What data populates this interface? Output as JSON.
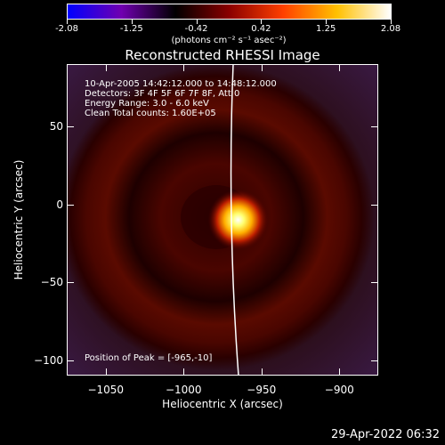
{
  "colorbar": {
    "tick_labels": [
      "-2.08",
      "-1.25",
      "-0.42",
      "0.42",
      "1.25",
      "2.08"
    ],
    "units": "(photons cm⁻² s⁻¹ asec⁻²)",
    "colors": [
      "#0000ff",
      "#7000b0",
      "#000000",
      "#8a0000",
      "#ff4000",
      "#ffc000",
      "#ffffff"
    ]
  },
  "title": "Reconstructed RHESSI Image",
  "info": {
    "time_range": "10-Apr-2005 14:42:12.000 to 14:48:12.000",
    "detectors": "Detectors: 3F 4F 5F 6F 7F 8F, Att 0",
    "energy": "Energy Range: 3.0 - 6.0 keV",
    "clean": "Clean     Total counts: 1.60E+05",
    "peak": "Position of Peak = [-965,-10]"
  },
  "axes": {
    "xlabel": "Heliocentric X (arcsec)",
    "ylabel": "Heliocentric Y (arcsec)",
    "xlim": [
      -1075,
      -875
    ],
    "ylim": [
      -110,
      90
    ],
    "x_ticks": [
      -1050,
      -1000,
      -950,
      -900
    ],
    "y_ticks": [
      -100,
      -50,
      0,
      50
    ],
    "x_tick_labels": [
      "−1050",
      "−1000",
      "−950",
      "−900"
    ],
    "y_tick_labels": [
      "−100",
      "−50",
      "0",
      "50"
    ]
  },
  "image": {
    "peak_position": [
      -965,
      -10
    ],
    "limb_color": "#ffffff"
  },
  "timestamp": "29-Apr-2022 06:32"
}
